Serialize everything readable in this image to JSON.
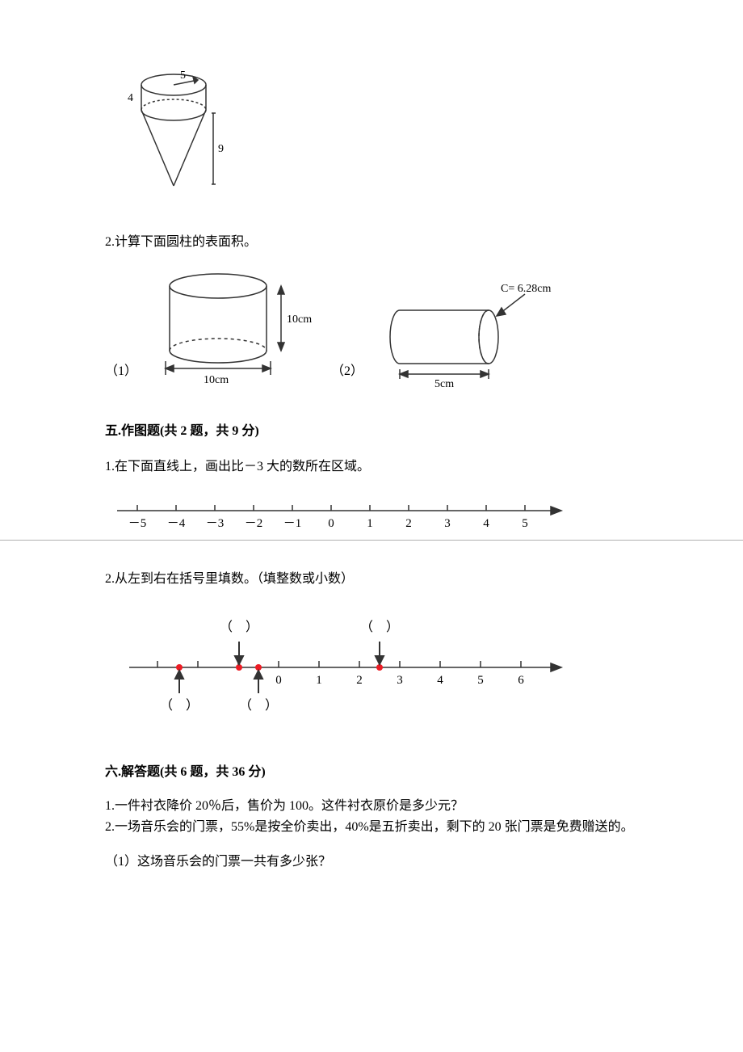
{
  "figure_top": {
    "radius_label": "5",
    "height_cyl": "4",
    "height_cone": "9"
  },
  "q2_text": "2.计算下面圆柱的表面积。",
  "cylinder1": {
    "prefix": "（1）",
    "height_label": "10cm",
    "diameter_label": "10cm"
  },
  "cylinder2": {
    "prefix": "（2）",
    "circ_label": "C= 6.28cm",
    "length_label": "5cm"
  },
  "section5": {
    "heading": "五.作图题(共 2 题，共 9 分)",
    "q1": "1.在下面直线上，画出比－3 大的数所在区域。",
    "q2": "2.从左到右在括号里填数。（填整数或小数）",
    "numline1_ticks": [
      "－5",
      "－4",
      "－3",
      "－2",
      "－1",
      "0",
      "1",
      "2",
      "3",
      "4",
      "5"
    ],
    "numline2_ticks": [
      "0",
      "1",
      "2",
      "3",
      "4",
      "5",
      "6"
    ]
  },
  "section6": {
    "heading": "六.解答题(共 6 题，共 36 分)",
    "q1": "1.一件衬衣降价 20％后，售价为 100。这件衬衣原价是多少元？",
    "q2": "2.一场音乐会的门票，55%是按全价卖出，40%是五折卖出，剩下的 20 张门票是免费赠送的。",
    "q2_sub": "（1）这场音乐会的门票一共有多少张？"
  },
  "colors": {
    "line": "#333333",
    "red": "#ed1c24",
    "gray": "#b0b0b0"
  },
  "font_sizes": {
    "body": 16,
    "svg_label": 14
  }
}
